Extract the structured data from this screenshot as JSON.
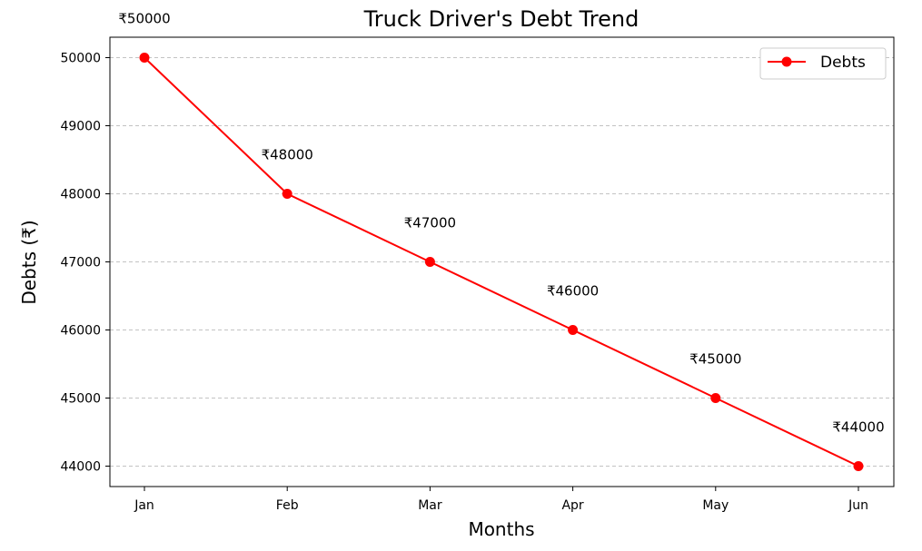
{
  "chart_data": {
    "type": "line",
    "title": "Truck Driver's Debt Trend",
    "xlabel": "Months",
    "ylabel": "Debts (₹)",
    "categories": [
      "Jan",
      "Feb",
      "Mar",
      "Apr",
      "May",
      "Jun"
    ],
    "series": [
      {
        "name": "Debts",
        "values": [
          50000,
          48000,
          47000,
          46000,
          45000,
          44000
        ],
        "data_labels": [
          "₹50000",
          "₹48000",
          "₹47000",
          "₹46000",
          "₹45000",
          "₹44000"
        ],
        "color": "#ff0000",
        "marker": "circle"
      }
    ],
    "yticks": [
      44000,
      45000,
      46000,
      47000,
      48000,
      49000,
      50000
    ],
    "ylim": [
      43700,
      50300
    ],
    "grid": "y-dashed",
    "legend_position": "top-right"
  }
}
